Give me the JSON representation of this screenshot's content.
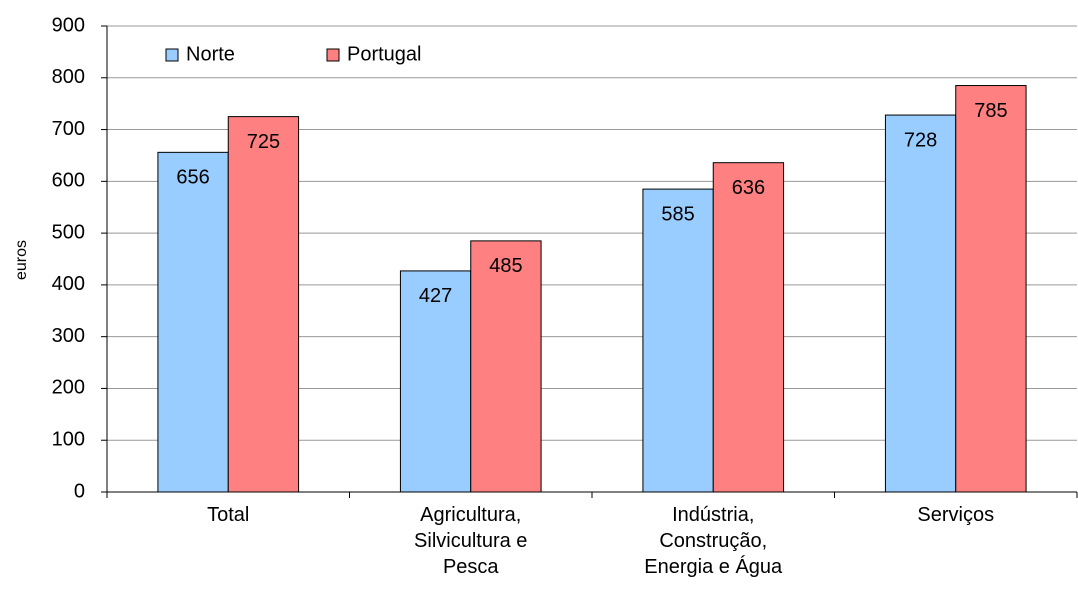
{
  "chart_data": {
    "type": "bar",
    "y_label": "euros",
    "categories": [
      "Total",
      "Agricultura,\nSilvicultura e\nPesca",
      "Indústria,\nConstrução,\nEnergia e Água",
      "Serviços"
    ],
    "series": [
      {
        "name": "Norte",
        "color": "#99ccff",
        "values": [
          656,
          427,
          585,
          728
        ]
      },
      {
        "name": "Portugal",
        "color": "#ff8080",
        "values": [
          725,
          485,
          636,
          785
        ]
      }
    ],
    "ylim": [
      0,
      900
    ],
    "yticks": [
      0,
      100,
      200,
      300,
      400,
      500,
      600,
      700,
      800,
      900
    ],
    "grid": true,
    "legend": "top-left"
  }
}
